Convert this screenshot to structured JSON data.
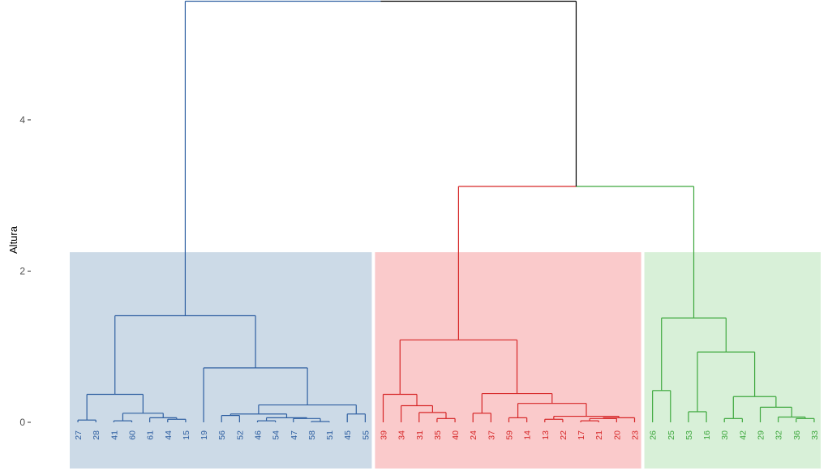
{
  "chart_data": {
    "type": "dendrogram",
    "ylabel": "Altura",
    "ylim": [
      0,
      5.5
    ],
    "y_ticks": [
      {
        "value": 0,
        "label": "0"
      },
      {
        "value": 2,
        "label": "2"
      },
      {
        "value": 4,
        "label": "4"
      }
    ],
    "x_axis_shown": false,
    "grid": false,
    "cluster_rect_height": 2.25,
    "root_color": "#000000",
    "leaves": [
      "27",
      "28",
      "41",
      "60",
      "61",
      "44",
      "15",
      "19",
      "56",
      "52",
      "46",
      "54",
      "47",
      "58",
      "51",
      "45",
      "55",
      "39",
      "34",
      "31",
      "35",
      "40",
      "24",
      "37",
      "59",
      "14",
      "13",
      "22",
      "17",
      "21",
      "20",
      "23",
      "26",
      "25",
      "53",
      "16",
      "30",
      "42",
      "29",
      "32",
      "36",
      "33"
    ],
    "clusters": [
      {
        "color": "#2E5FA1",
        "fill": "#CCDAE7",
        "first_leaf": "27",
        "last_leaf": "55"
      },
      {
        "color": "#D62728",
        "fill": "#FACACB",
        "first_leaf": "39",
        "last_leaf": "23"
      },
      {
        "color": "#3EA83E",
        "fill": "#D8F0D8",
        "first_leaf": "26",
        "last_leaf": "33"
      }
    ],
    "merges": [
      {
        "a": "58",
        "b": "51",
        "h": 0.01
      },
      {
        "a": "17",
        "b": "21",
        "h": 0.02
      },
      {
        "a": "41",
        "b": "60",
        "h": 0.02
      },
      {
        "a": "46",
        "b": "54",
        "h": 0.02
      },
      {
        "a": "27",
        "b": "28",
        "h": 0.03
      },
      {
        "a": "44",
        "b": "15",
        "h": 0.04
      },
      {
        "a": "13",
        "b": "22",
        "h": 0.04
      },
      {
        "a": "36",
        "b": "33",
        "h": 0.05
      },
      {
        "a": "35",
        "b": "40",
        "h": 0.05
      },
      {
        "a": "30",
        "b": "42",
        "h": 0.05
      },
      {
        "a": "47",
        "b": [
          "58",
          "51"
        ],
        "h": 0.05
      },
      {
        "a": [
          "17",
          "21"
        ],
        "b": "20",
        "h": 0.05
      },
      {
        "a": [
          "46",
          "54"
        ],
        "b": [
          "47",
          "58",
          "51"
        ],
        "h": 0.06
      },
      {
        "a": "59",
        "b": "14",
        "h": 0.06
      },
      {
        "a": [
          "17",
          "21",
          "20"
        ],
        "b": "23",
        "h": 0.06
      },
      {
        "a": "61",
        "b": [
          "44",
          "15"
        ],
        "h": 0.06
      },
      {
        "a": "32",
        "b": [
          "36",
          "33"
        ],
        "h": 0.07
      },
      {
        "a": [
          "13",
          "22"
        ],
        "b": [
          "17",
          "21",
          "20",
          "23"
        ],
        "h": 0.08
      },
      {
        "a": "56",
        "b": "52",
        "h": 0.09
      },
      {
        "a": [
          "56",
          "52"
        ],
        "b": [
          "46",
          "54",
          "47",
          "58",
          "51"
        ],
        "h": 0.11
      },
      {
        "a": "45",
        "b": "55",
        "h": 0.11
      },
      {
        "a": "24",
        "b": "37",
        "h": 0.12
      },
      {
        "a": [
          "41",
          "60"
        ],
        "b": [
          "61",
          "44",
          "15"
        ],
        "h": 0.12
      },
      {
        "a": "31",
        "b": [
          "35",
          "40"
        ],
        "h": 0.13
      },
      {
        "a": "53",
        "b": "16",
        "h": 0.14
      },
      {
        "a": "29",
        "b": [
          "32",
          "36",
          "33"
        ],
        "h": 0.2
      },
      {
        "a": [
          "34"
        ],
        "b": [
          "31",
          "35",
          "40"
        ],
        "h": 0.22
      },
      {
        "a": [
          "56",
          "52",
          "46",
          "54",
          "47",
          "58",
          "51"
        ],
        "b": [
          "45",
          "55"
        ],
        "h": 0.23
      },
      {
        "a": [
          "59",
          "14"
        ],
        "b": [
          "13",
          "22",
          "17",
          "21",
          "20",
          "23"
        ],
        "h": 0.25
      },
      {
        "a": [
          "30",
          "42"
        ],
        "b": [
          "29",
          "32",
          "36",
          "33"
        ],
        "h": 0.34
      },
      {
        "a": [
          "27",
          "28"
        ],
        "b": [
          "41",
          "60",
          "61",
          "44",
          "15"
        ],
        "h": 0.37
      },
      {
        "a": "39",
        "b": [
          "34",
          "31",
          "35",
          "40"
        ],
        "h": 0.37
      },
      {
        "a": [
          "24",
          "37"
        ],
        "b": [
          "59",
          "14",
          "13",
          "22",
          "17",
          "21",
          "20",
          "23"
        ],
        "h": 0.38
      },
      {
        "a": "26",
        "b": "25",
        "h": 0.42
      },
      {
        "a": "19",
        "b": [
          "56",
          "52",
          "46",
          "54",
          "47",
          "58",
          "51",
          "45",
          "55"
        ],
        "h": 0.72
      },
      {
        "a": [
          "53",
          "16"
        ],
        "b": [
          "30",
          "42",
          "29",
          "32",
          "36",
          "33"
        ],
        "h": 0.93
      },
      {
        "a": [
          "39",
          "34",
          "31",
          "35",
          "40"
        ],
        "b": [
          "24",
          "37",
          "59",
          "14",
          "13",
          "22",
          "17",
          "21",
          "20",
          "23"
        ],
        "h": 1.09
      },
      {
        "a": [
          "26",
          "25"
        ],
        "b": [
          "53",
          "16",
          "30",
          "42",
          "29",
          "32",
          "36",
          "33"
        ],
        "h": 1.38
      },
      {
        "a": [
          "27",
          "28",
          "41",
          "60",
          "61",
          "44",
          "15"
        ],
        "b": [
          "19",
          "56",
          "52",
          "46",
          "54",
          "47",
          "58",
          "51",
          "45",
          "55"
        ],
        "h": 1.41
      },
      {
        "a": [
          "39",
          "34",
          "31",
          "35",
          "40",
          "24",
          "37",
          "59",
          "14",
          "13",
          "22",
          "17",
          "21",
          "20",
          "23"
        ],
        "b": [
          "26",
          "25",
          "53",
          "16",
          "30",
          "42",
          "29",
          "32",
          "36",
          "33"
        ],
        "h": 3.12
      },
      {
        "a": [
          "27",
          "28",
          "41",
          "60",
          "61",
          "44",
          "15",
          "19",
          "56",
          "52",
          "46",
          "54",
          "47",
          "58",
          "51",
          "45",
          "55"
        ],
        "b": [
          "39",
          "34",
          "31",
          "35",
          "40",
          "24",
          "37",
          "59",
          "14",
          "13",
          "22",
          "17",
          "21",
          "20",
          "23",
          "26",
          "25",
          "53",
          "16",
          "30",
          "42",
          "29",
          "32",
          "36",
          "33"
        ],
        "h": 5.57
      }
    ]
  }
}
